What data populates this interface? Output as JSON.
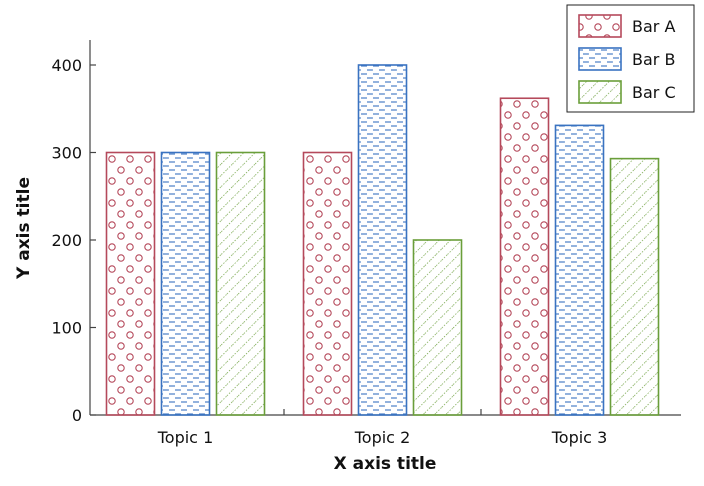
{
  "chart_data": {
    "type": "bar",
    "title": "",
    "xlabel": "X axis title",
    "ylabel": "Y axis title",
    "categories": [
      "Topic 1",
      "Topic 2",
      "Topic 3"
    ],
    "series": [
      {
        "name": "Bar A",
        "values": [
          300,
          300,
          362
        ],
        "color": "#b5495b",
        "pattern": "circles"
      },
      {
        "name": "Bar B",
        "values": [
          300,
          400,
          331
        ],
        "color": "#3a73c1",
        "pattern": "dashes"
      },
      {
        "name": "Bar C",
        "values": [
          300,
          200,
          293
        ],
        "color": "#6a9e3a",
        "pattern": "diagonal-dots"
      }
    ],
    "ylim": [
      0,
      430
    ],
    "yticks": [
      0,
      100,
      200,
      300,
      400
    ],
    "grid": false,
    "legend_position": "top-right"
  }
}
